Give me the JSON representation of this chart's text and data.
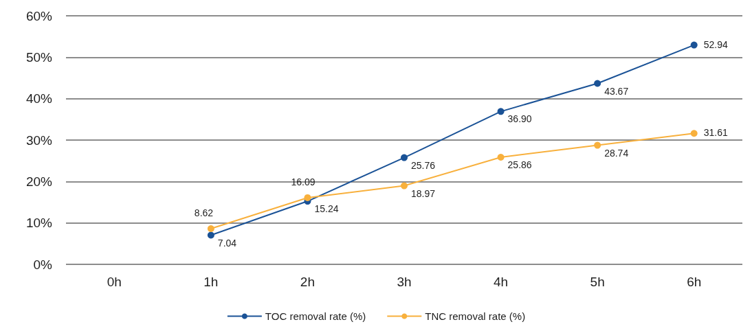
{
  "chart_data": {
    "type": "line",
    "categories": [
      "0h",
      "1h",
      "2h",
      "3h",
      "4h",
      "5h",
      "6h"
    ],
    "series": [
      {
        "name": "TOC removal rate (%)",
        "color": "#1a5296",
        "values": [
          null,
          7.04,
          15.24,
          25.76,
          36.9,
          43.67,
          52.94
        ],
        "value_labels": [
          null,
          "7.04",
          "15.24",
          "25.76",
          "36.90",
          "43.67",
          "52.94"
        ]
      },
      {
        "name": "TNC removal rate (%)",
        "color": "#f8b03c",
        "values": [
          null,
          8.62,
          16.09,
          18.97,
          25.86,
          28.74,
          31.61
        ],
        "value_labels": [
          null,
          "8.62",
          "16.09",
          "18.97",
          "25.86",
          "28.74",
          "31.61"
        ]
      }
    ],
    "ylim": [
      0,
      60
    ],
    "yticks": [
      {
        "value": 0,
        "label": "0%"
      },
      {
        "value": 10,
        "label": "10%"
      },
      {
        "value": 20,
        "label": "20%"
      },
      {
        "value": 30,
        "label": "30%"
      },
      {
        "value": 40,
        "label": "40%"
      },
      {
        "value": 50,
        "label": "50%"
      },
      {
        "value": 60,
        "label": "60%"
      }
    ],
    "grid": "y",
    "legend": "bottom",
    "marker": "circle",
    "line_style": "solid"
  }
}
